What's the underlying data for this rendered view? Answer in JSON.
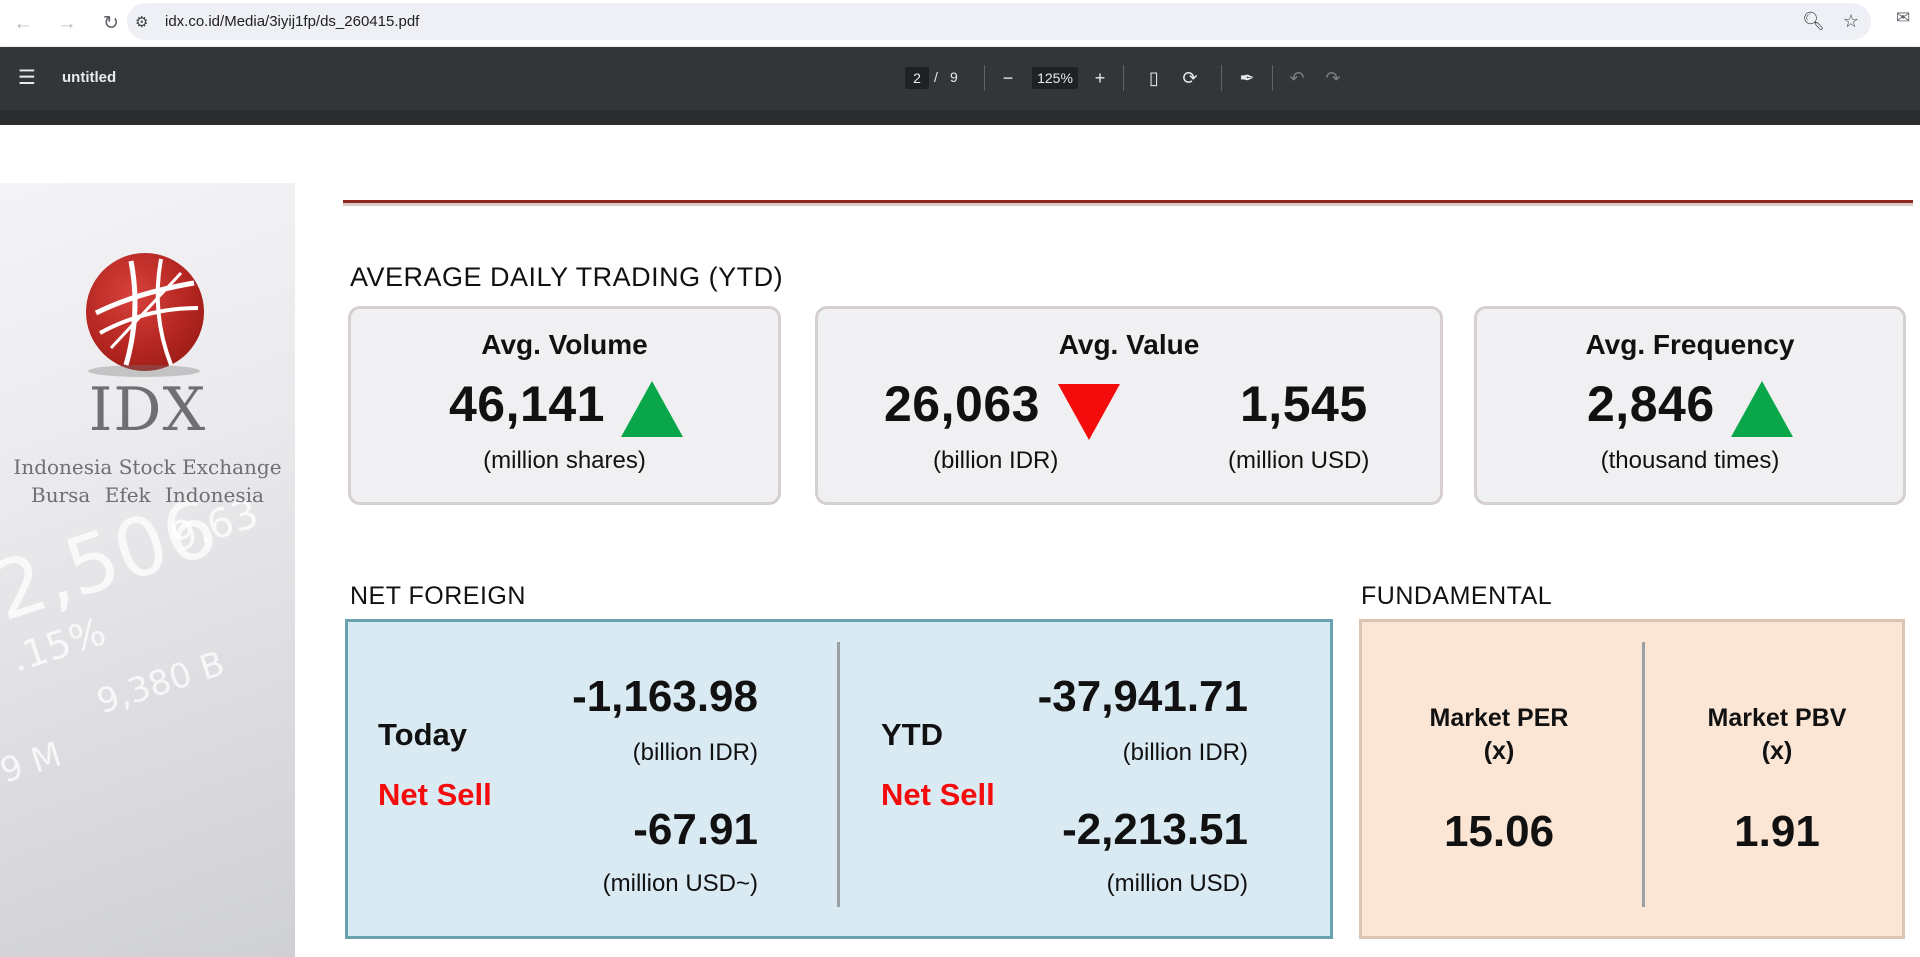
{
  "browser": {
    "url": "idx.co.id/Media/3iyij1fp/ds_260415.pdf"
  },
  "pdf_toolbar": {
    "title": "untitled",
    "current_page": "2",
    "page_separator": "/",
    "total_pages": "9",
    "zoom": "125%"
  },
  "logo": {
    "brand": "IDX",
    "line1": "Indonesia Stock Exchange",
    "line2": "Bursa Efek Indonesia"
  },
  "average_daily_trading": {
    "title": "AVERAGE DAILY TRADING (YTD)",
    "volume": {
      "label": "Avg. Volume",
      "value": "46,141",
      "unit": "(million shares)",
      "trend": "up"
    },
    "value": {
      "label": "Avg. Value",
      "value_idr": "26,063",
      "unit_idr": "(billion IDR)",
      "value_usd": "1,545",
      "unit_usd": "(million USD)",
      "trend": "down"
    },
    "frequency": {
      "label": "Avg. Frequency",
      "value": "2,846",
      "unit": "(thousand times)",
      "trend": "up"
    }
  },
  "net_foreign": {
    "title": "NET FOREIGN",
    "today": {
      "label": "Today",
      "status": "Net Sell",
      "idr": "-1,163.98",
      "idr_unit": "(billion IDR)",
      "usd": "-67.91",
      "usd_unit": "(million USD~)"
    },
    "ytd": {
      "label": "YTD",
      "status": "Net Sell",
      "idr": "-37,941.71",
      "idr_unit": "(billion IDR)",
      "usd": "-2,213.51",
      "usd_unit": "(million USD)"
    }
  },
  "fundamental": {
    "title": "FUNDAMENTAL",
    "per": {
      "label": "Market PER",
      "unit": "(x)",
      "value": "15.06"
    },
    "pbv": {
      "label": "Market PBV",
      "unit": "(x)",
      "value": "1.91"
    }
  },
  "colors": {
    "up": "#0aa64a",
    "down": "#f40c0c",
    "accent": "#8b2620"
  }
}
